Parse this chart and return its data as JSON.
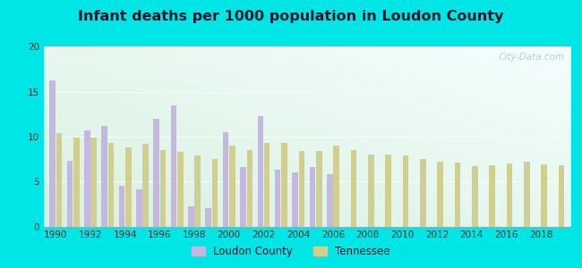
{
  "title": "Infant deaths per 1000 population in Loudon County",
  "years": [
    1990,
    1991,
    1992,
    1993,
    1994,
    1995,
    1996,
    1997,
    1998,
    1999,
    2000,
    2001,
    2002,
    2003,
    2004,
    2005,
    2006,
    2007,
    2008,
    2009,
    2010,
    2011,
    2012,
    2013,
    2014,
    2015,
    2016,
    2017,
    2018,
    2019
  ],
  "loudon": [
    16.3,
    7.3,
    10.7,
    11.2,
    4.5,
    4.1,
    12.0,
    13.5,
    2.2,
    2.0,
    10.5,
    6.6,
    12.3,
    6.3,
    6.0,
    6.6,
    5.8,
    0,
    0,
    0,
    0,
    0,
    0,
    0,
    0,
    0,
    0,
    0,
    0,
    0
  ],
  "tennessee": [
    10.4,
    9.9,
    9.9,
    9.3,
    8.8,
    9.2,
    8.5,
    8.3,
    7.9,
    7.5,
    9.0,
    8.5,
    9.3,
    9.3,
    8.4,
    8.4,
    9.0,
    8.5,
    8.0,
    8.0,
    7.9,
    7.5,
    7.2,
    7.1,
    6.7,
    6.8,
    7.0,
    7.2,
    6.9,
    6.8
  ],
  "loudon_color": "#c4b8e0",
  "tennessee_color": "#d0cf90",
  "bg_top_right": "#f5fffe",
  "bg_bottom_left": "#d8f0e0",
  "ylim": [
    0,
    20
  ],
  "yticks": [
    0,
    5,
    10,
    15,
    20
  ],
  "xtick_years": [
    1990,
    1992,
    1994,
    1996,
    1998,
    2000,
    2002,
    2004,
    2006,
    2008,
    2010,
    2012,
    2014,
    2016,
    2018
  ],
  "bar_width": 0.38,
  "watermark": "City-Data.com",
  "outer_bg": "#00e5e5",
  "title_color": "#1a1a2e",
  "tick_color": "#333333"
}
